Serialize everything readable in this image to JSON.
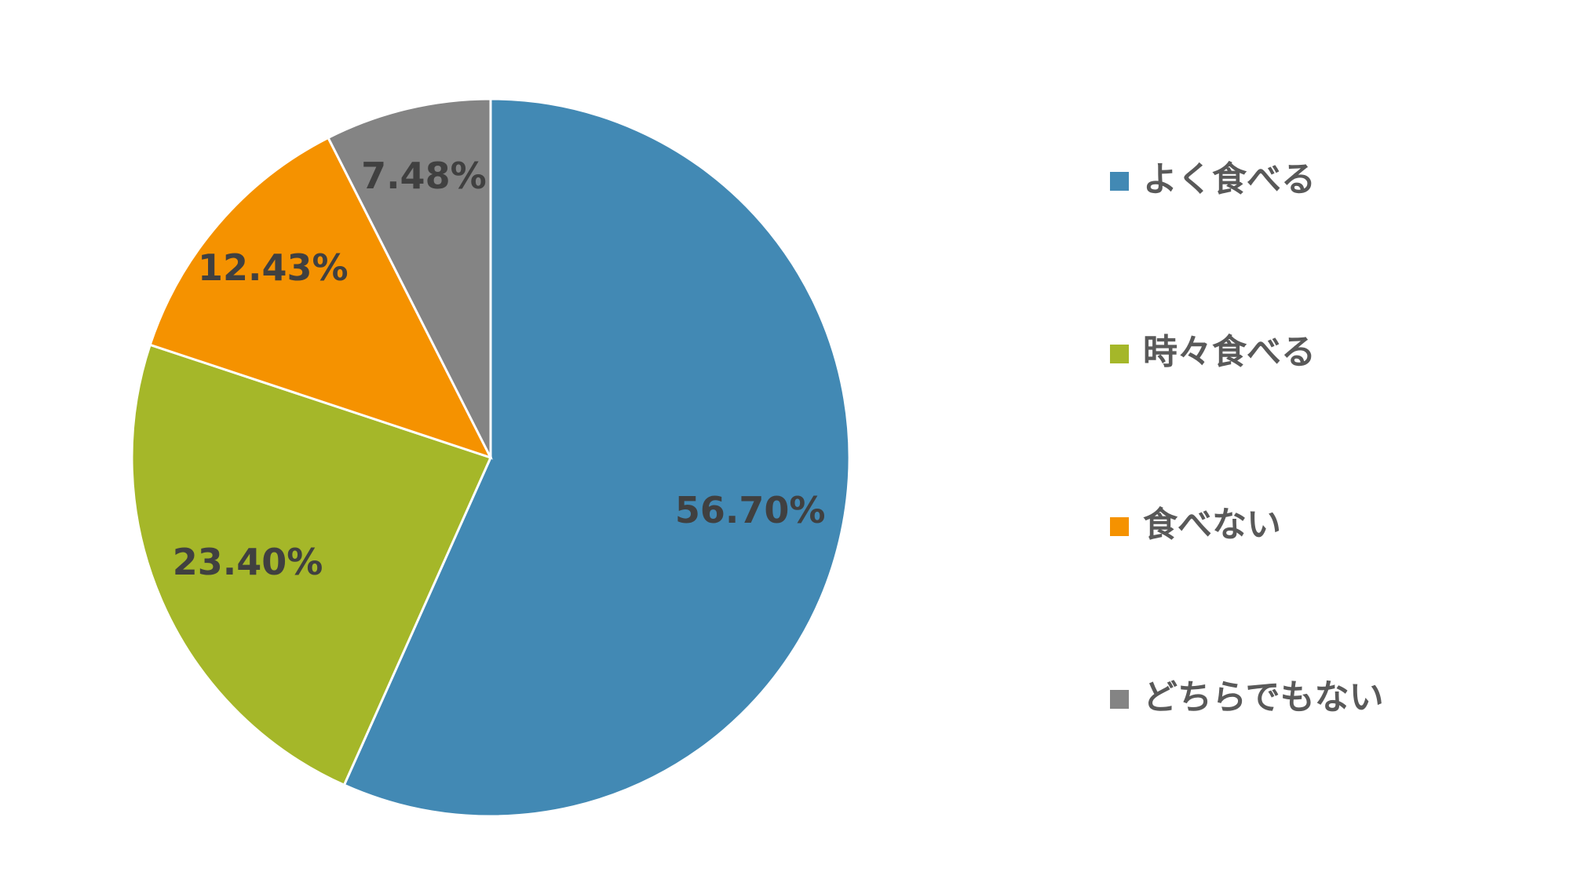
{
  "chart_data": {
    "type": "pie",
    "categories": [
      "よく食べる",
      "時々食べる",
      "食べない",
      "どちらでもない"
    ],
    "values": [
      56.7,
      23.4,
      12.43,
      7.48
    ],
    "value_labels": [
      "56.70%",
      "23.40%",
      "12.43%",
      "7.48%"
    ],
    "colors": [
      "#4289b4",
      "#a5b729",
      "#f59200",
      "#848484"
    ],
    "legend": "right"
  }
}
